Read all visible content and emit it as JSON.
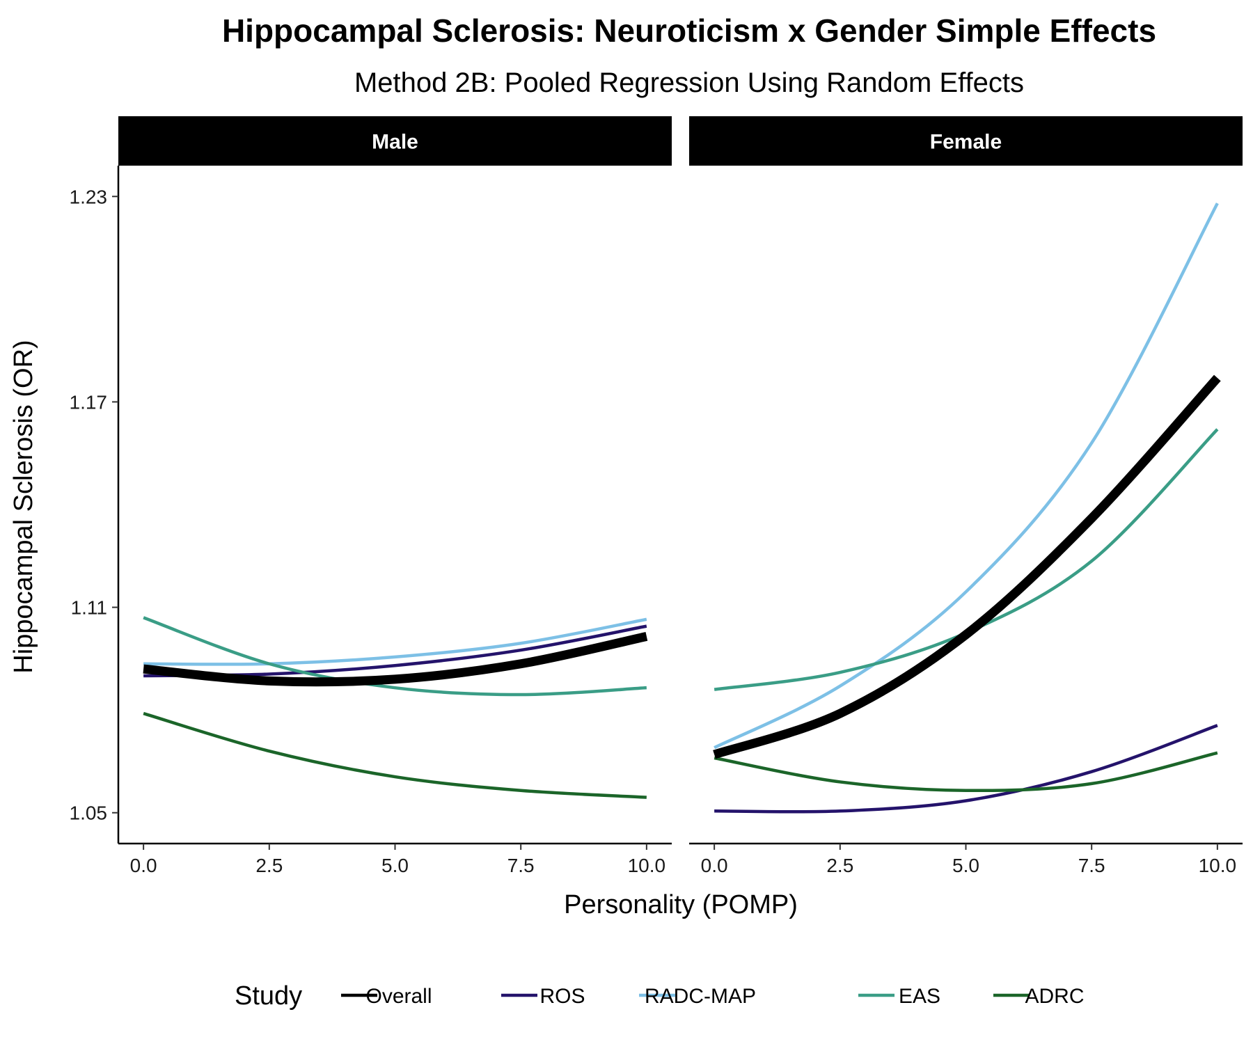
{
  "chart_data": {
    "type": "line",
    "title": "Hippocampal Sclerosis: Neuroticism x Gender Simple Effects",
    "subtitle": "Method 2B: Pooled Regression Using Random Effects",
    "xlabel": "Personality (POMP)",
    "ylabel": "Hippocampal Sclerosis (OR)",
    "xlim": [
      -0.5,
      10.5
    ],
    "ylim": [
      1.041,
      1.239
    ],
    "x_ticks": [
      0,
      2.5,
      5,
      7.5,
      10
    ],
    "x_tick_labels": [
      "0.0",
      "2.5",
      "5.0",
      "7.5",
      "10.0"
    ],
    "y_ticks": [
      1.05,
      1.11,
      1.17,
      1.23
    ],
    "y_tick_labels": [
      "1.05",
      "1.11",
      "1.17",
      "1.23"
    ],
    "grid": false,
    "legend": {
      "title": "Study",
      "position": "bottom",
      "entries": [
        {
          "label": "Overall",
          "color": "#000000"
        },
        {
          "label": "ROS",
          "color": "#24136b"
        },
        {
          "label": "RADC-MAP",
          "color": "#7dc0e6"
        },
        {
          "label": "EAS",
          "color": "#3a9d86"
        },
        {
          "label": "ADRC",
          "color": "#1b6529"
        }
      ]
    },
    "panels": [
      {
        "strip": "Male",
        "series": [
          {
            "name": "Overall",
            "x": [
              0,
              2.5,
              5,
              7.5,
              10
            ],
            "y": [
              1.092,
              1.0885,
              1.089,
              1.0935,
              1.1015
            ]
          },
          {
            "name": "ROS",
            "x": [
              0,
              2.5,
              5,
              7.5,
              10
            ],
            "y": [
              1.09,
              1.0905,
              1.093,
              1.0975,
              1.1045
            ]
          },
          {
            "name": "RADC-MAP",
            "x": [
              0,
              2.5,
              5,
              7.5,
              10
            ],
            "y": [
              1.0935,
              1.0935,
              1.0955,
              1.0995,
              1.1065
            ]
          },
          {
            "name": "EAS",
            "x": [
              0,
              2.5,
              5,
              7.5,
              10
            ],
            "y": [
              1.107,
              1.0935,
              1.0865,
              1.0845,
              1.0865
            ]
          },
          {
            "name": "ADRC",
            "x": [
              0,
              2.5,
              5,
              7.5,
              10
            ],
            "y": [
              1.079,
              1.068,
              1.0605,
              1.0565,
              1.0545
            ]
          }
        ]
      },
      {
        "strip": "Female",
        "series": [
          {
            "name": "Overall",
            "x": [
              0,
              2.5,
              5,
              7.5,
              10
            ],
            "y": [
              1.067,
              1.079,
              1.102,
              1.136,
              1.177
            ]
          },
          {
            "name": "ROS",
            "x": [
              0,
              2.5,
              5,
              7.5,
              10
            ],
            "y": [
              1.0505,
              1.0505,
              1.0535,
              1.062,
              1.0755
            ]
          },
          {
            "name": "RADC-MAP",
            "x": [
              0,
              2.5,
              5,
              7.5,
              10
            ],
            "y": [
              1.069,
              1.087,
              1.1145,
              1.158,
              1.228
            ]
          },
          {
            "name": "EAS",
            "x": [
              0,
              2.5,
              5,
              7.5,
              10
            ],
            "y": [
              1.086,
              1.091,
              1.1025,
              1.1235,
              1.162
            ]
          },
          {
            "name": "ADRC",
            "x": [
              0,
              2.5,
              5,
              7.5,
              10
            ],
            "y": [
              1.066,
              1.059,
              1.0565,
              1.0585,
              1.0675
            ]
          }
        ]
      }
    ]
  }
}
